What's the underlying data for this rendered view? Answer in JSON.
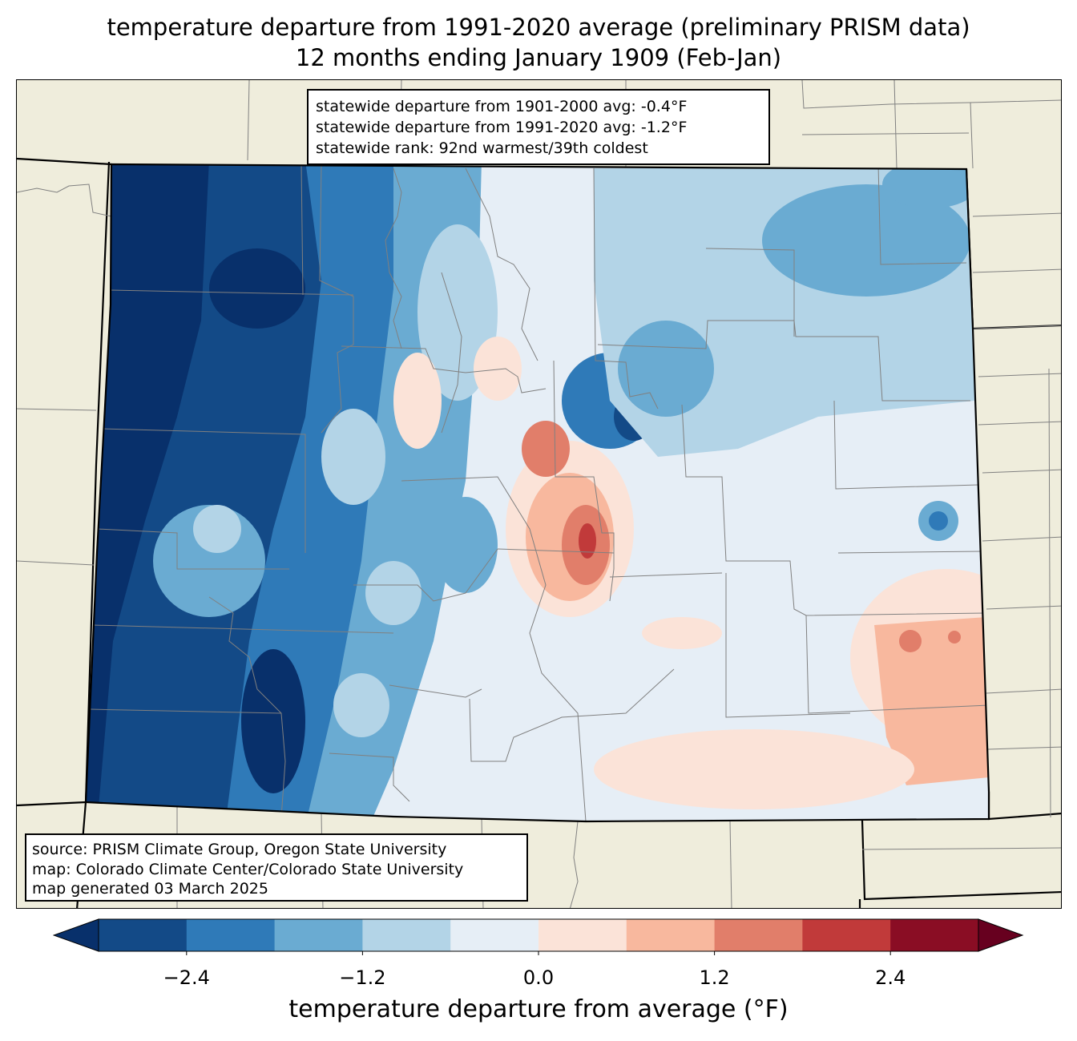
{
  "title": {
    "line1": "temperature departure from 1991-2020 average (preliminary PRISM data)",
    "line2": "12 months ending January 1909 (Feb-Jan)"
  },
  "stats": {
    "line1": "statewide departure from 1901-2000 avg: -0.4°F",
    "line2": "statewide departure from 1991-2020 avg: -1.2°F",
    "line3": "statewide rank: 92nd warmest/39th coldest"
  },
  "source": {
    "line1": "source: PRISM Climate Group, Oregon State University",
    "line2": "map: Colorado Climate Center/Colorado State University",
    "line3": "map generated 03 March 2025"
  },
  "colorbar": {
    "label": "temperature departure from average (°F)",
    "levels": [
      -3.0,
      -2.4,
      -1.8,
      -1.2,
      -0.6,
      0.0,
      0.6,
      1.2,
      1.8,
      2.4,
      3.0
    ],
    "colors": [
      "#08306b",
      "#134a87",
      "#2f7ab8",
      "#6aabd2",
      "#b3d4e7",
      "#e6eef6",
      "#fbe3d8",
      "#f8b89e",
      "#e17e6a",
      "#c13a3a",
      "#8a0d24",
      "#67001f"
    ],
    "under_color": "#08306b",
    "over_color": "#67001f",
    "ticks": [
      {
        "value": -2.4,
        "label": "−2.4"
      },
      {
        "value": -1.2,
        "label": "−1.2"
      },
      {
        "value": 0.0,
        "label": "0.0"
      },
      {
        "value": 1.2,
        "label": "1.2"
      },
      {
        "value": 2.4,
        "label": "2.4"
      }
    ]
  },
  "map": {
    "land_color": "#efeddc",
    "state_border_color": "#000000",
    "county_border_color": "#808080"
  }
}
